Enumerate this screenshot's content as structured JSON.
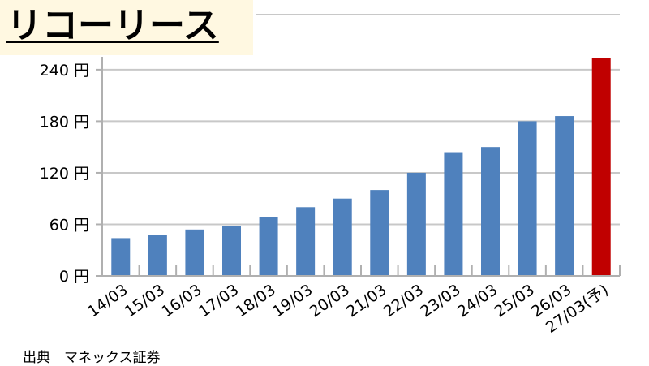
{
  "title": "リコーリース",
  "source": "出典　マネックス証券",
  "chart_data": {
    "type": "bar",
    "categories": [
      "14/03",
      "15/03",
      "16/03",
      "17/03",
      "18/03",
      "19/03",
      "20/03",
      "21/03",
      "22/03",
      "23/03",
      "24/03",
      "25/03",
      "26/03",
      "27/03(予)"
    ],
    "values": [
      44,
      48,
      54,
      58,
      68,
      80,
      90,
      100,
      120,
      144,
      150,
      180,
      186,
      254
    ],
    "ylim": [
      0,
      255
    ],
    "yticks": [
      0,
      60,
      120,
      180,
      240
    ],
    "ytick_labels": [
      "0 円",
      "60 円",
      "120 円",
      "180 円",
      "240 円"
    ],
    "grid": true,
    "colors": {
      "actual": "#4f81bd",
      "forecast": "#c00000",
      "grid": "#c8c8c8",
      "axis": "#b0b0b0"
    },
    "forecast_index": 13
  }
}
